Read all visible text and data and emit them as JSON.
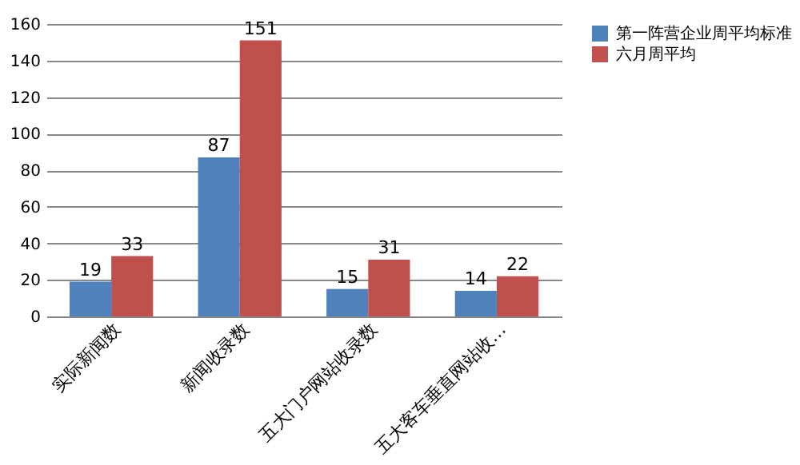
{
  "chart_data": {
    "type": "bar",
    "categories": [
      "实际新闻数",
      "新闻收录数",
      "五大门户网站收录数",
      "五大客车垂直网站收…"
    ],
    "series": [
      {
        "name": "第一阵营企业周平均标准",
        "color": "#4f81bd",
        "values": [
          19,
          87,
          15,
          14
        ]
      },
      {
        "name": "六月周平均",
        "color": "#c0504d",
        "values": [
          33,
          151,
          31,
          22
        ]
      }
    ],
    "ylim": [
      0,
      160
    ],
    "yticks": [
      0,
      20,
      40,
      60,
      80,
      100,
      120,
      140,
      160
    ],
    "grid": "y",
    "legend": "right",
    "data_labels": true
  }
}
